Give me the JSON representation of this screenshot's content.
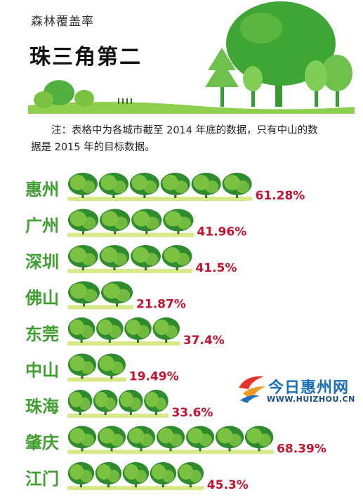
{
  "header": {
    "subtitle": "森林覆盖率",
    "title": "珠三角第二",
    "note": "注：表格中为各城市截至 2014 年底的数据，只有中山的数据是 2015 年的目标数据。"
  },
  "colors": {
    "city_label": "#3e9e2e",
    "value_label": "#c4122f",
    "tree_dark": "#2e8b2e",
    "tree_light": "#7cc242",
    "ground": "#d8e98a"
  },
  "chart_data": {
    "type": "bar",
    "categories": [
      "惠州",
      "广州",
      "深圳",
      "佛山",
      "东莞",
      "中山",
      "珠海",
      "肇庆",
      "江门"
    ],
    "values": [
      61.28,
      41.96,
      41.5,
      21.87,
      37.4,
      19.49,
      33.6,
      68.39,
      45.3
    ],
    "value_labels": [
      "61.28%",
      "41.96%",
      "41.5%",
      "21.87%",
      "37.4%",
      "19.49%",
      "33.6%",
      "68.39%",
      "45.3%"
    ],
    "unit": "%",
    "title": "珠三角第二",
    "xlabel": "",
    "ylabel": ""
  },
  "watermark": {
    "name": "今日惠州网",
    "url": "WWW.HUIZHOU.CN"
  }
}
